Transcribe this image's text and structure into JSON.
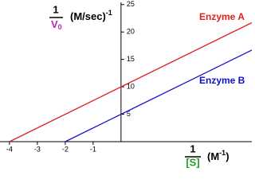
{
  "chart_data": {
    "type": "line",
    "y_label": {
      "numerator": "1",
      "denominator": "V",
      "denominator_sub": "0",
      "unit": "(M/sec)",
      "unit_sup": "-1"
    },
    "x_label": {
      "numerator": "1",
      "denominator": "[S]",
      "unit": "(M",
      "unit_sup": "-1",
      "unit_end": ")"
    },
    "series": [
      {
        "name": "Enzyme A",
        "color": "#e02020",
        "x": [
          -4,
          4.69
        ],
        "values": [
          0,
          21.7
        ]
      },
      {
        "name": "Enzyme B",
        "color": "#1010d0",
        "x": [
          -2,
          4.69
        ],
        "values": [
          0,
          16.7
        ]
      }
    ],
    "xlim": [
      -4.34,
      4.69
    ],
    "ylim": [
      0,
      25.4
    ],
    "xticks": [
      -4,
      -3,
      -2,
      -1
    ],
    "yticks": [
      5,
      10,
      15,
      20,
      25
    ]
  }
}
